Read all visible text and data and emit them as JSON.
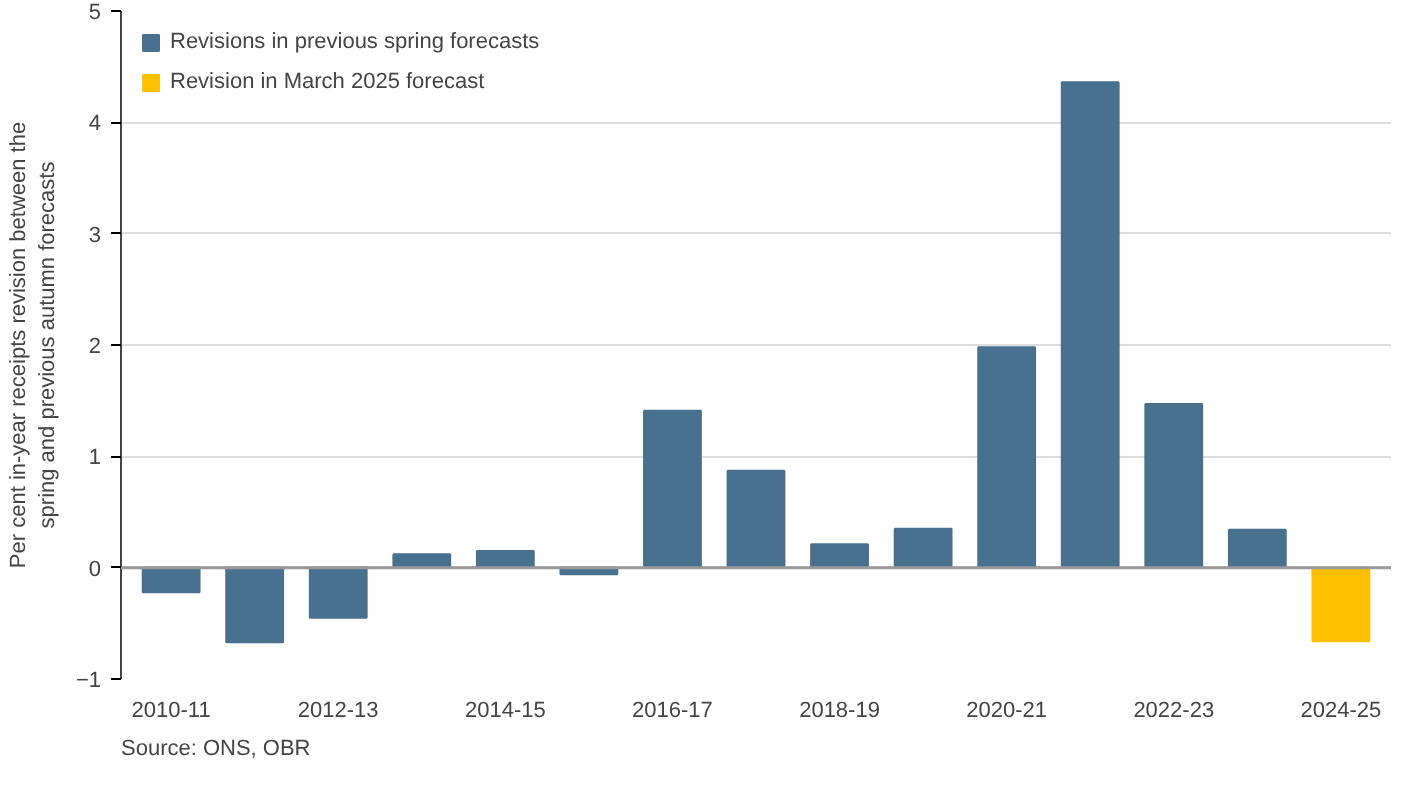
{
  "chart_data": {
    "type": "bar",
    "ylabel": "Per cent in-year receipts revision between the spring and previous autumn forecasts",
    "categories": [
      "2010-11",
      null,
      "2012-13",
      null,
      "2014-15",
      null,
      "2016-17",
      null,
      "2018-19",
      null,
      "2020-21",
      null,
      "2022-23",
      null,
      "2024-25"
    ],
    "series": [
      {
        "name": "Revisions in previous spring forecasts",
        "color": "#48708f",
        "values": [
          -0.22,
          -0.67,
          -0.45,
          0.12,
          0.15,
          -0.06,
          1.41,
          0.87,
          0.21,
          0.35,
          1.98,
          4.36,
          1.47,
          0.34,
          null
        ]
      },
      {
        "name": "Revision in March 2025 forecast",
        "color": "#ffc000",
        "values": [
          null,
          null,
          null,
          null,
          null,
          null,
          null,
          null,
          null,
          null,
          null,
          null,
          null,
          null,
          -0.66
        ]
      }
    ],
    "ylim": [
      -1,
      5
    ],
    "yticks": [
      -1,
      0,
      1,
      2,
      3,
      4,
      5
    ],
    "grid": "y",
    "legend": "top left",
    "annotations": [
      "Source: ONS, OBR"
    ]
  }
}
